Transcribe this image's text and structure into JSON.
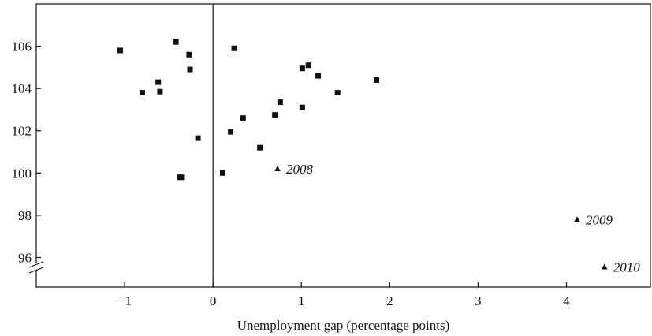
{
  "chart_data": {
    "type": "scatter",
    "title": "",
    "xlabel": "Unemployment gap (percentage points)",
    "ylabel": "",
    "xlim": [
      -2.0,
      4.95
    ],
    "ylim": [
      94.6,
      108.0
    ],
    "x_ticks": [
      -1,
      0,
      1,
      2,
      3,
      4
    ],
    "x_tick_labels": [
      "−1",
      "0",
      "1",
      "2",
      "3",
      "4"
    ],
    "y_ticks": [
      96,
      98,
      100,
      102,
      104,
      106
    ],
    "y_tick_labels": [
      "96",
      "98",
      "100",
      "102",
      "104",
      "106"
    ],
    "y_axis_break": true,
    "vertical_reference_line_x": 0,
    "grid": false,
    "legend": "none",
    "series": [
      {
        "marker": "square",
        "points": [
          {
            "x": -1.05,
            "y": 105.8
          },
          {
            "x": -0.8,
            "y": 103.8
          },
          {
            "x": -0.62,
            "y": 104.3
          },
          {
            "x": -0.6,
            "y": 103.85
          },
          {
            "x": -0.42,
            "y": 106.2
          },
          {
            "x": -0.38,
            "y": 99.8
          },
          {
            "x": -0.35,
            "y": 99.8
          },
          {
            "x": -0.27,
            "y": 105.6
          },
          {
            "x": -0.26,
            "y": 104.9
          },
          {
            "x": -0.17,
            "y": 101.65
          },
          {
            "x": 0.11,
            "y": 100.0
          },
          {
            "x": 0.2,
            "y": 101.95
          },
          {
            "x": 0.24,
            "y": 105.9
          },
          {
            "x": 0.34,
            "y": 102.6
          },
          {
            "x": 0.53,
            "y": 101.2
          },
          {
            "x": 0.7,
            "y": 102.75
          },
          {
            "x": 0.76,
            "y": 103.35
          },
          {
            "x": 1.01,
            "y": 103.1
          },
          {
            "x": 1.01,
            "y": 104.95
          },
          {
            "x": 1.08,
            "y": 105.1
          },
          {
            "x": 1.19,
            "y": 104.6
          },
          {
            "x": 1.41,
            "y": 103.8
          },
          {
            "x": 1.85,
            "y": 104.4
          }
        ]
      },
      {
        "marker": "triangle",
        "points": [
          {
            "x": 0.73,
            "y": 100.2,
            "label": "2008"
          },
          {
            "x": 4.12,
            "y": 97.8,
            "label": "2009"
          },
          {
            "x": 4.43,
            "y": 95.55,
            "label": "2010"
          }
        ]
      }
    ]
  },
  "colors": {
    "axis": "#111111",
    "marker": "#111111",
    "background": "#ffffff"
  }
}
